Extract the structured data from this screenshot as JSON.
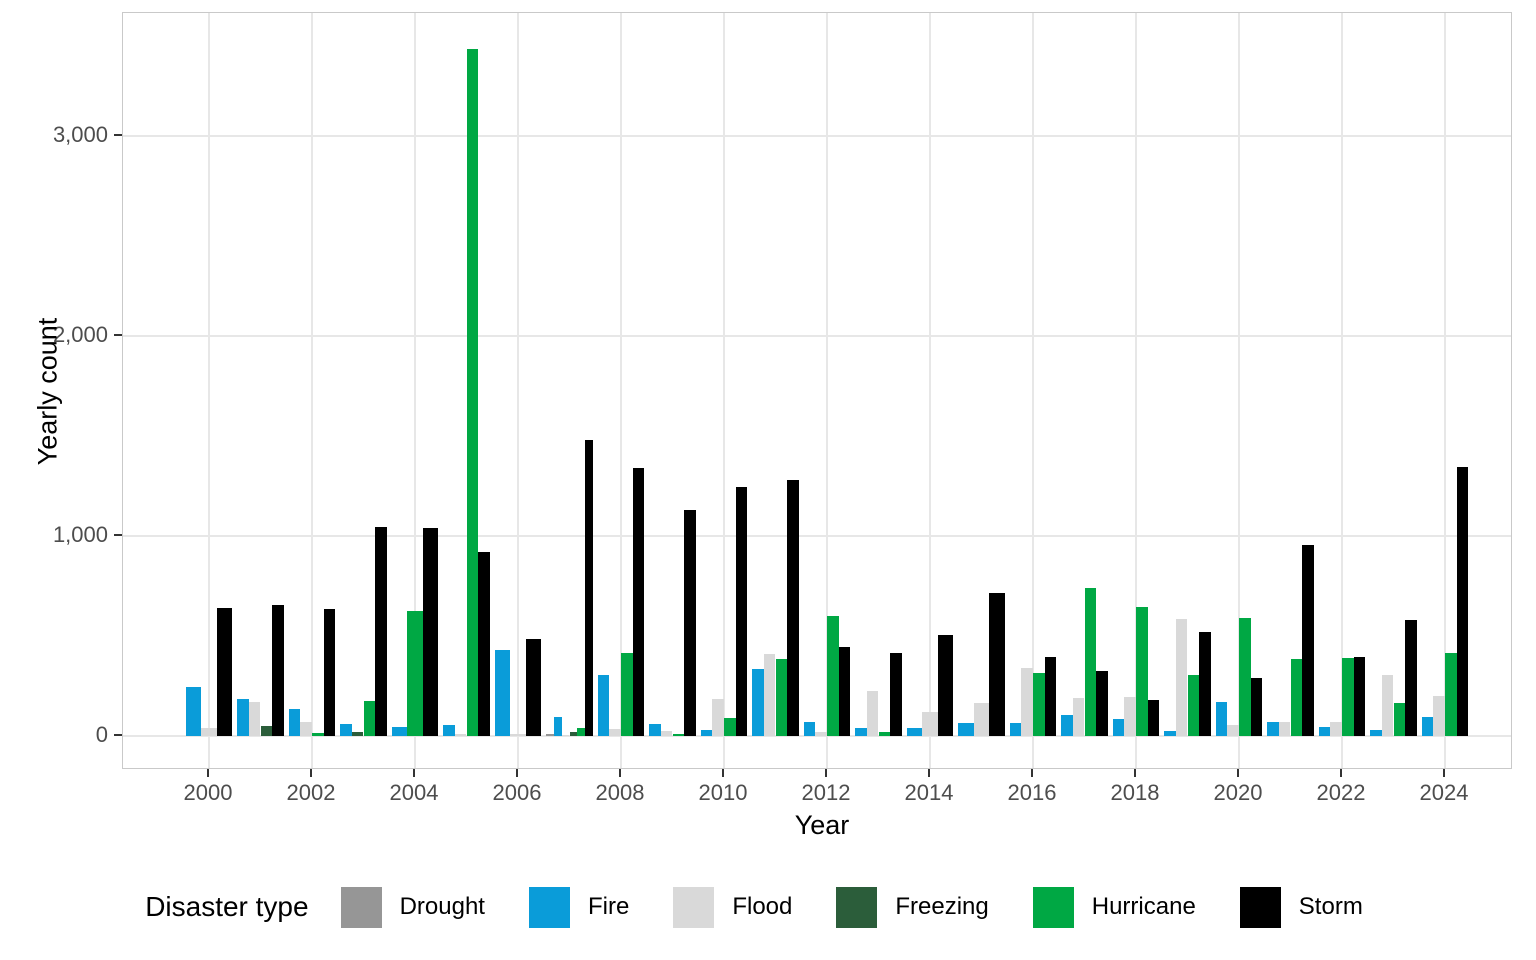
{
  "chart": {
    "y_axis": {
      "label": "Yearly count",
      "tick_labels": [
        "0",
        "1,000",
        "2,000",
        "3,000"
      ],
      "tick_values": [
        0,
        1000,
        2000,
        3000
      ]
    },
    "x_axis": {
      "label": "Year",
      "tick_labels": [
        "2000",
        "2002",
        "2004",
        "2006",
        "2008",
        "2010",
        "2012",
        "2014",
        "2016",
        "2018",
        "2020",
        "2022",
        "2024"
      ],
      "tick_values": [
        2000,
        2002,
        2004,
        2006,
        2008,
        2010,
        2012,
        2014,
        2016,
        2018,
        2020,
        2022,
        2024
      ]
    },
    "legend": {
      "title": "Disaster type",
      "items": [
        {
          "label": "Drought",
          "color": "#969696"
        },
        {
          "label": "Fire",
          "color": "#0a9cd9"
        },
        {
          "label": "Flood",
          "color": "#d9d9d9"
        },
        {
          "label": "Freezing",
          "color": "#2b5d3a"
        },
        {
          "label": "Hurricane",
          "color": "#00a844"
        },
        {
          "label": "Storm",
          "color": "#000000"
        }
      ]
    }
  },
  "chart_data": {
    "type": "bar",
    "title": "",
    "xlabel": "Year",
    "ylabel": "Yearly count",
    "ylim": [
      0,
      3500
    ],
    "grid": true,
    "legend_position": "bottom",
    "categories": [
      2000,
      2001,
      2002,
      2003,
      2004,
      2005,
      2006,
      2007,
      2008,
      2009,
      2010,
      2011,
      2012,
      2013,
      2014,
      2015,
      2016,
      2017,
      2018,
      2019,
      2020,
      2021,
      2022,
      2023,
      2024
    ],
    "series": [
      {
        "name": "Drought",
        "color": "#969696",
        "values": [
          null,
          null,
          null,
          null,
          null,
          null,
          null,
          10,
          null,
          null,
          null,
          null,
          null,
          null,
          null,
          null,
          null,
          null,
          null,
          null,
          null,
          null,
          null,
          null,
          null
        ]
      },
      {
        "name": "Fire",
        "color": "#0a9cd9",
        "values": [
          245,
          185,
          135,
          60,
          45,
          55,
          430,
          95,
          305,
          60,
          30,
          335,
          70,
          40,
          40,
          65,
          65,
          105,
          85,
          25,
          170,
          70,
          45,
          30,
          95
        ]
      },
      {
        "name": "Flood",
        "color": "#d9d9d9",
        "values": [
          40,
          170,
          70,
          null,
          null,
          10,
          10,
          5,
          35,
          25,
          185,
          410,
          20,
          225,
          120,
          165,
          340,
          190,
          195,
          585,
          55,
          70,
          70,
          305,
          200
        ]
      },
      {
        "name": "Freezing",
        "color": "#2b5d3a",
        "values": [
          null,
          50,
          null,
          20,
          null,
          null,
          null,
          20,
          null,
          null,
          null,
          null,
          null,
          null,
          null,
          null,
          null,
          null,
          null,
          null,
          null,
          null,
          null,
          null,
          null
        ]
      },
      {
        "name": "Hurricane",
        "color": "#00a844",
        "values": [
          null,
          null,
          15,
          175,
          625,
          3435,
          null,
          40,
          415,
          10,
          90,
          385,
          600,
          20,
          null,
          null,
          315,
          740,
          645,
          305,
          590,
          385,
          390,
          165,
          415
        ]
      },
      {
        "name": "Storm",
        "color": "#000000",
        "values": [
          640,
          655,
          635,
          1045,
          1040,
          920,
          485,
          1480,
          1340,
          1130,
          1245,
          1280,
          445,
          415,
          505,
          715,
          395,
          325,
          180,
          520,
          290,
          955,
          395,
          580,
          1345
        ]
      }
    ]
  }
}
